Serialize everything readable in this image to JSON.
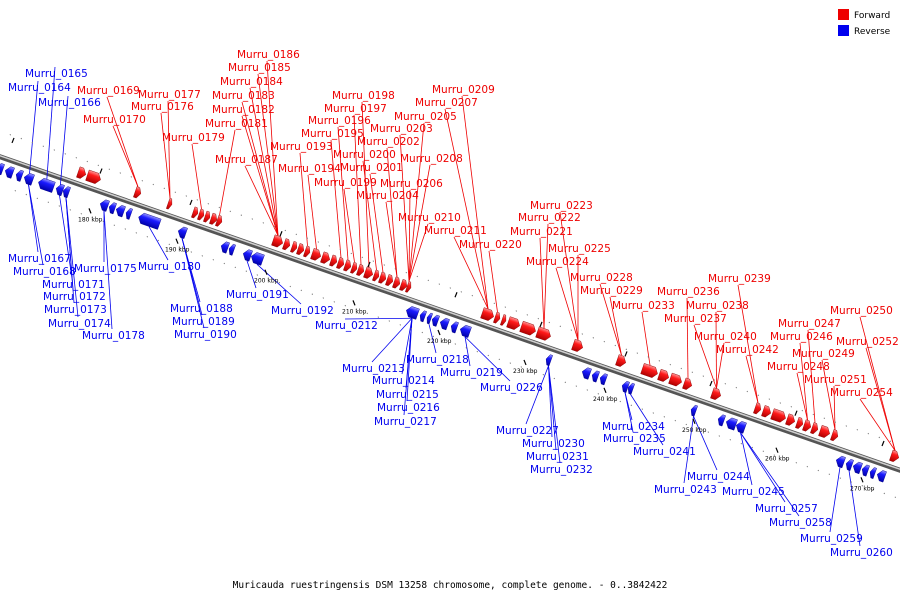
{
  "caption": "Muricauda ruestringensis DSM 13258 chromosome, complete genome. - 0..3842422",
  "legend": [
    {
      "label": "Forward",
      "color": "#ee0000"
    },
    {
      "label": "Reverse",
      "color": "#0000ee"
    }
  ],
  "colors": {
    "forward": "#ee0000",
    "reverse": "#0000ee",
    "backbone": "#888888"
  },
  "tick_labels": [
    "180 kbp",
    "190 kbp",
    "200 kbp",
    "210 kbp",
    "220 kbp",
    "230 kbp",
    "240 kbp",
    "250 kbp",
    "260 kbp",
    "270 kbp"
  ],
  "forward_labels": [
    "Murru_0169",
    "Murru_0170",
    "Murru_0176",
    "Murru_0177",
    "Murru_0179",
    "Murru_0181",
    "Murru_0182",
    "Murru_0183",
    "Murru_0184",
    "Murru_0185",
    "Murru_0186",
    "Murru_0187",
    "Murru_0193",
    "Murru_0194",
    "Murru_0195",
    "Murru_0196",
    "Murru_0197",
    "Murru_0198",
    "Murru_0199",
    "Murru_0200",
    "Murru_0201",
    "Murru_0202",
    "Murru_0203",
    "Murru_0204",
    "Murru_0205",
    "Murru_0206",
    "Murru_0207",
    "Murru_0208",
    "Murru_0209",
    "Murru_0210",
    "Murru_0211",
    "Murru_0220",
    "Murru_0221",
    "Murru_0222",
    "Murru_0223",
    "Murru_0224",
    "Murru_0225",
    "Murru_0228",
    "Murru_0229",
    "Murru_0233",
    "Murru_0236",
    "Murru_0237",
    "Murru_0238",
    "Murru_0239",
    "Murru_0240",
    "Murru_0242",
    "Murru_0246",
    "Murru_0247",
    "Murru_0248",
    "Murru_0249",
    "Murru_0250",
    "Murru_0251",
    "Murru_0252",
    "Murru_0254"
  ],
  "reverse_labels": [
    "Murru_0164",
    "Murru_0165",
    "Murru_0166",
    "Murru_0167",
    "Murru_0168",
    "Murru_0171",
    "Murru_0172",
    "Murru_0173",
    "Murru_0174",
    "Murru_0175",
    "Murru_0178",
    "Murru_0180",
    "Murru_0188",
    "Murru_0189",
    "Murru_0190",
    "Murru_0191",
    "Murru_0192",
    "Murru_0212",
    "Murru_0213",
    "Murru_0214",
    "Murru_0215",
    "Murru_0216",
    "Murru_0217",
    "Murru_0218",
    "Murru_0219",
    "Murru_0226",
    "Murru_0227",
    "Murru_0230",
    "Murru_0231",
    "Murru_0232",
    "Murru_0234",
    "Murru_0235",
    "Murru_0241",
    "Murru_0243",
    "Murru_0244",
    "Murru_0245",
    "Murru_0257",
    "Murru_0258",
    "Murru_0259",
    "Murru_0260"
  ]
}
